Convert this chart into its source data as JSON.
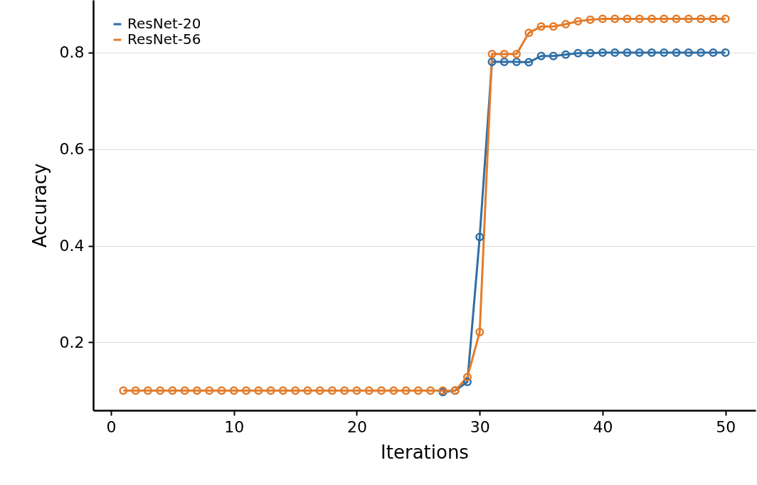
{
  "chart_data": {
    "type": "line",
    "xlabel": "Iterations",
    "ylabel": "Accuracy",
    "x": [
      1,
      2,
      3,
      4,
      5,
      6,
      7,
      8,
      9,
      10,
      11,
      12,
      13,
      14,
      15,
      16,
      17,
      18,
      19,
      20,
      21,
      22,
      23,
      24,
      25,
      26,
      27,
      28,
      29,
      30,
      31,
      32,
      33,
      34,
      35,
      36,
      37,
      38,
      39,
      40,
      41,
      42,
      43,
      44,
      45,
      46,
      47,
      48,
      49,
      50
    ],
    "series": [
      {
        "name": "ResNet-20",
        "color": "#2f6ea5",
        "values": [
          null,
          null,
          null,
          null,
          null,
          null,
          null,
          null,
          null,
          null,
          null,
          null,
          null,
          null,
          null,
          null,
          null,
          null,
          null,
          null,
          null,
          null,
          null,
          null,
          null,
          null,
          0.097,
          0.1,
          0.118,
          0.418,
          0.781,
          0.781,
          0.781,
          0.78,
          0.793,
          0.793,
          0.796,
          0.799,
          0.799,
          0.8,
          0.8,
          0.8,
          0.8,
          0.8,
          0.8,
          0.8,
          0.8,
          0.8,
          0.8,
          0.8
        ]
      },
      {
        "name": "ResNet-56",
        "color": "#e37b2a",
        "values": [
          0.1,
          0.1,
          0.1,
          0.1,
          0.1,
          0.1,
          0.1,
          0.1,
          0.1,
          0.1,
          0.1,
          0.1,
          0.1,
          0.1,
          0.1,
          0.1,
          0.1,
          0.1,
          0.1,
          0.1,
          0.1,
          0.1,
          0.1,
          0.1,
          0.1,
          0.1,
          0.1,
          0.1,
          0.128,
          0.221,
          0.797,
          0.797,
          0.797,
          0.841,
          0.854,
          0.854,
          0.859,
          0.865,
          0.868,
          0.87,
          0.87,
          0.87,
          0.87,
          0.87,
          0.87,
          0.87,
          0.87,
          0.87,
          0.87,
          0.87
        ]
      }
    ],
    "xlim": [
      -1.45,
      52.45
    ],
    "ylim": [
      0.059,
      0.909
    ],
    "xticks": [
      0,
      10,
      20,
      30,
      40,
      50
    ],
    "yticks": [
      0.2,
      0.4,
      0.6,
      0.8
    ],
    "grid": "y",
    "legend": "top left",
    "marker": "circle",
    "line_style": "solid"
  }
}
